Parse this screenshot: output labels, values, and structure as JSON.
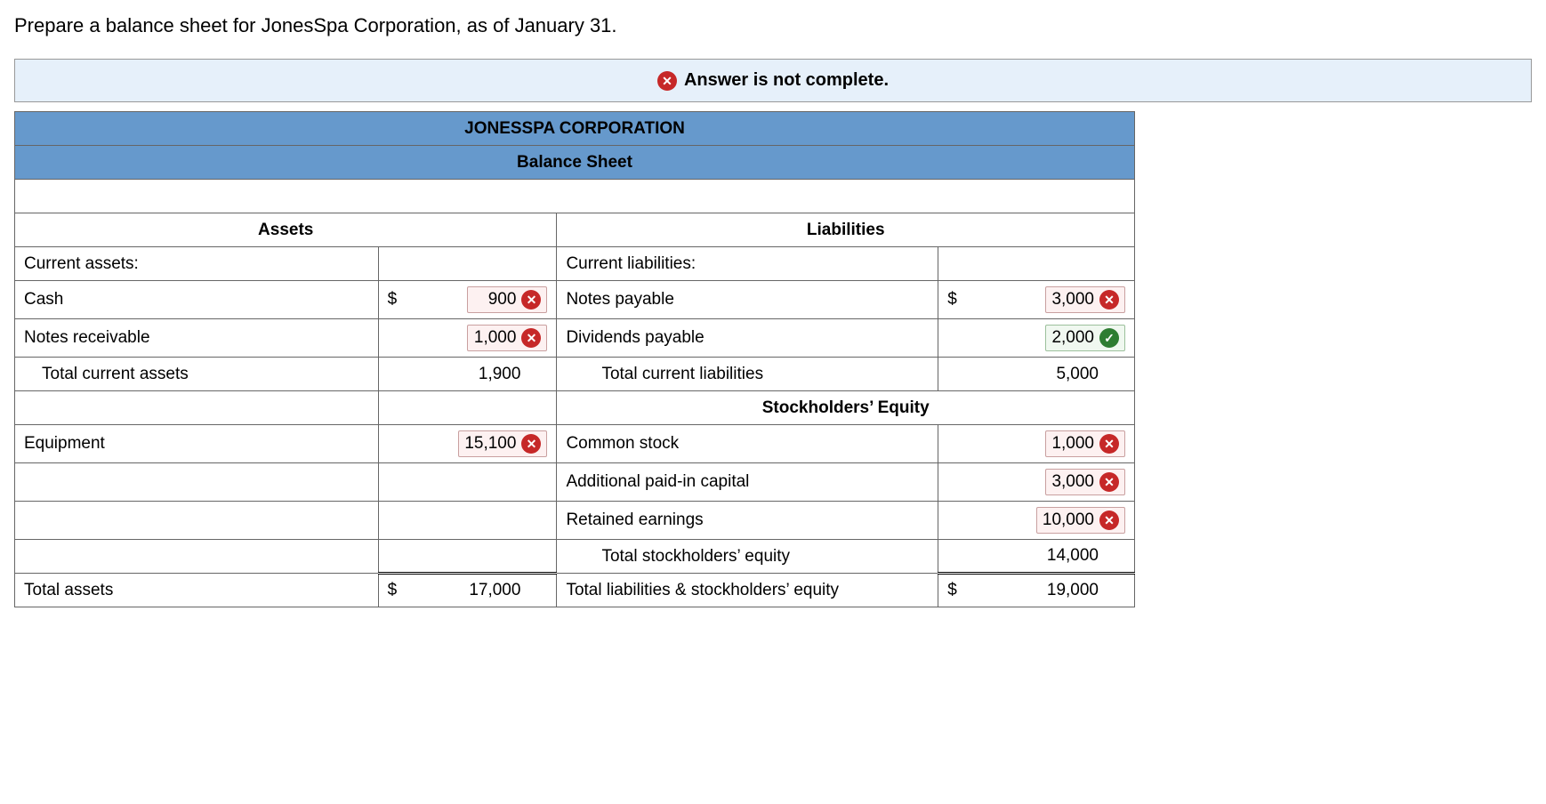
{
  "instruction": "Prepare a balance sheet for JonesSpa Corporation, as of January 31.",
  "banner": {
    "icon": "x",
    "text": "Answer is not complete."
  },
  "header": {
    "company": "JONESSPA CORPORATION",
    "title": "Balance Sheet"
  },
  "sections": {
    "assets_hdr": "Assets",
    "liab_hdr": "Liabilities",
    "equity_hdr": "Stockholders’ Equity"
  },
  "labels": {
    "current_assets": "Current assets:",
    "cash": "Cash",
    "notes_receivable": "Notes receivable",
    "total_current_assets": "Total current assets",
    "equipment": "Equipment",
    "total_assets": "Total assets",
    "current_liabilities": "Current liabilities:",
    "notes_payable": "Notes payable",
    "dividends_payable": "Dividends payable",
    "total_current_liabilities": "Total current liabilities",
    "common_stock": "Common stock",
    "apic": "Additional paid-in capital",
    "retained_earnings": "Retained earnings",
    "total_equity": "Total stockholders’ equity",
    "total_liab_equity": "Total liabilities & stockholders’ equity"
  },
  "currency": "$",
  "values": {
    "cash": "900",
    "notes_receivable": "1,000",
    "total_current_assets": "1,900",
    "equipment": "15,100",
    "total_assets": "17,000",
    "notes_payable": "3,000",
    "dividends_payable": "2,000",
    "total_current_liabilities": "5,000",
    "common_stock": "1,000",
    "apic": "3,000",
    "retained_earnings": "10,000",
    "total_equity": "14,000",
    "total_liab_equity": "19,000"
  },
  "status": {
    "cash": "wrong",
    "notes_receivable": "wrong",
    "equipment": "wrong",
    "notes_payable": "wrong",
    "dividends_payable": "correct",
    "common_stock": "wrong",
    "apic": "wrong",
    "retained_earnings": "wrong"
  },
  "colors": {
    "banner_bg": "#e6f0fa",
    "header_bg": "#6699cc",
    "wrong_bg": "#fdf1f1",
    "wrong_badge": "#c62828",
    "correct_bg": "#f0f8f0",
    "correct_badge": "#2e7d32",
    "border": "#666666"
  }
}
